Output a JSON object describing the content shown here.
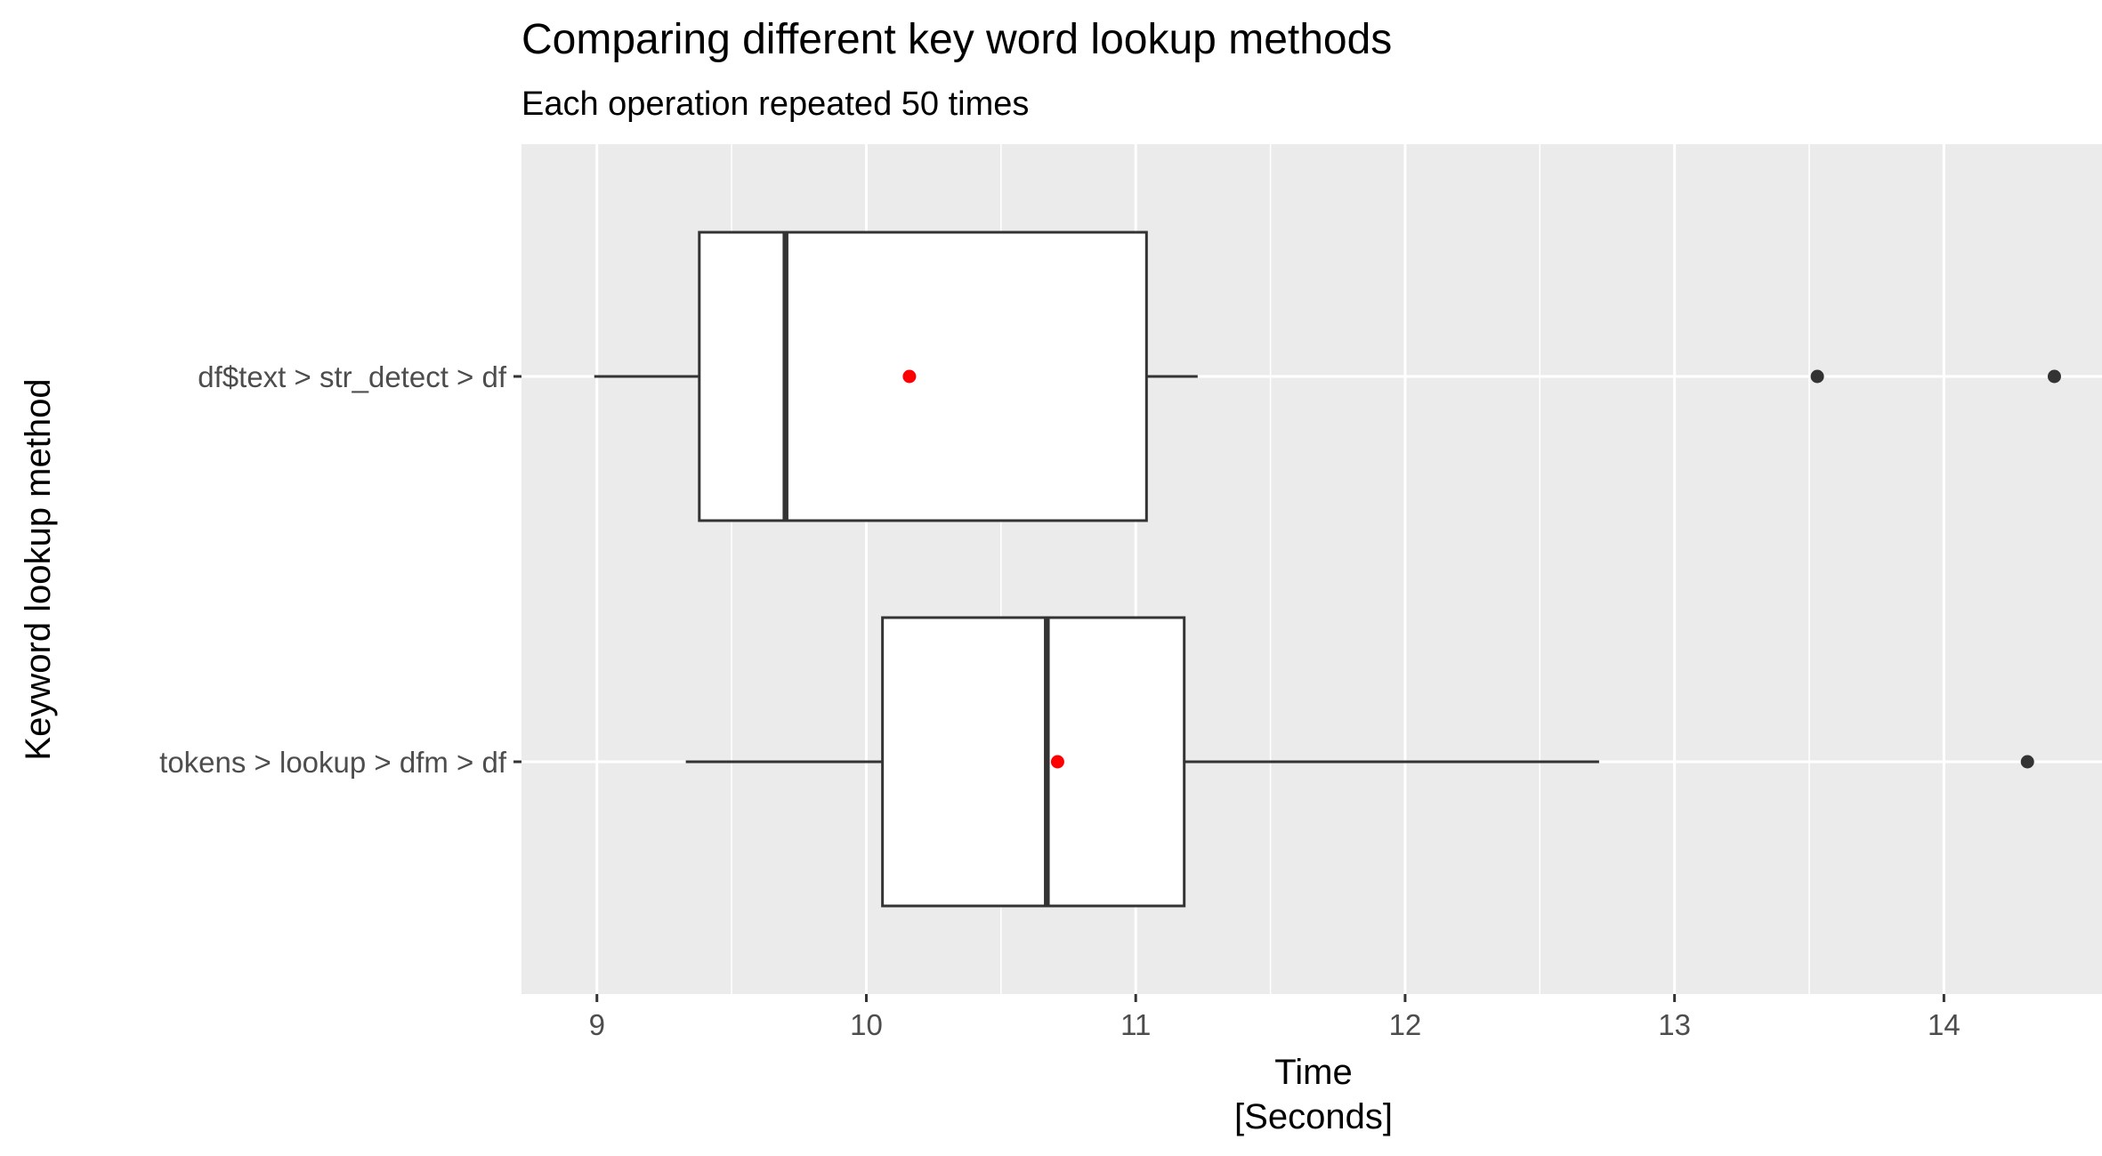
{
  "chart_data": {
    "type": "boxplot",
    "orientation": "horizontal",
    "title": "Comparing different key word lookup methods",
    "subtitle": "Each operation repeated 50 times",
    "xlabel": [
      "Time",
      "[Seconds]"
    ],
    "ylabel": "Keyword lookup method",
    "xlim": [
      8.72,
      14.6
    ],
    "x_ticks": [
      9,
      10,
      11,
      12,
      13,
      14
    ],
    "x_tick_labels": [
      "9",
      "10",
      "11",
      "12",
      "13",
      "14"
    ],
    "categories": [
      "df$text > str_detect > df",
      "tokens > lookup > dfm > df"
    ],
    "boxes": [
      {
        "category": "df$text > str_detect > df",
        "whisker_low": 8.99,
        "q1": 9.38,
        "median": 9.7,
        "q3": 11.04,
        "whisker_high": 11.23,
        "mean": 10.16,
        "outliers": [
          13.53,
          14.41
        ]
      },
      {
        "category": "tokens > lookup > dfm > df",
        "whisker_low": 9.33,
        "q1": 10.06,
        "median": 10.67,
        "q3": 11.18,
        "whisker_high": 12.72,
        "mean": 10.71,
        "outliers": [
          14.31
        ]
      }
    ],
    "grid": true,
    "legend": "none",
    "colors": {
      "panel_background": "#ebebeb",
      "grid_line": "#ffffff",
      "box_fill": "#ffffff",
      "box_line": "#333333",
      "outlier": "#333333",
      "mean_point": "#ff0000",
      "tick_label": "#4d4d4d"
    }
  }
}
